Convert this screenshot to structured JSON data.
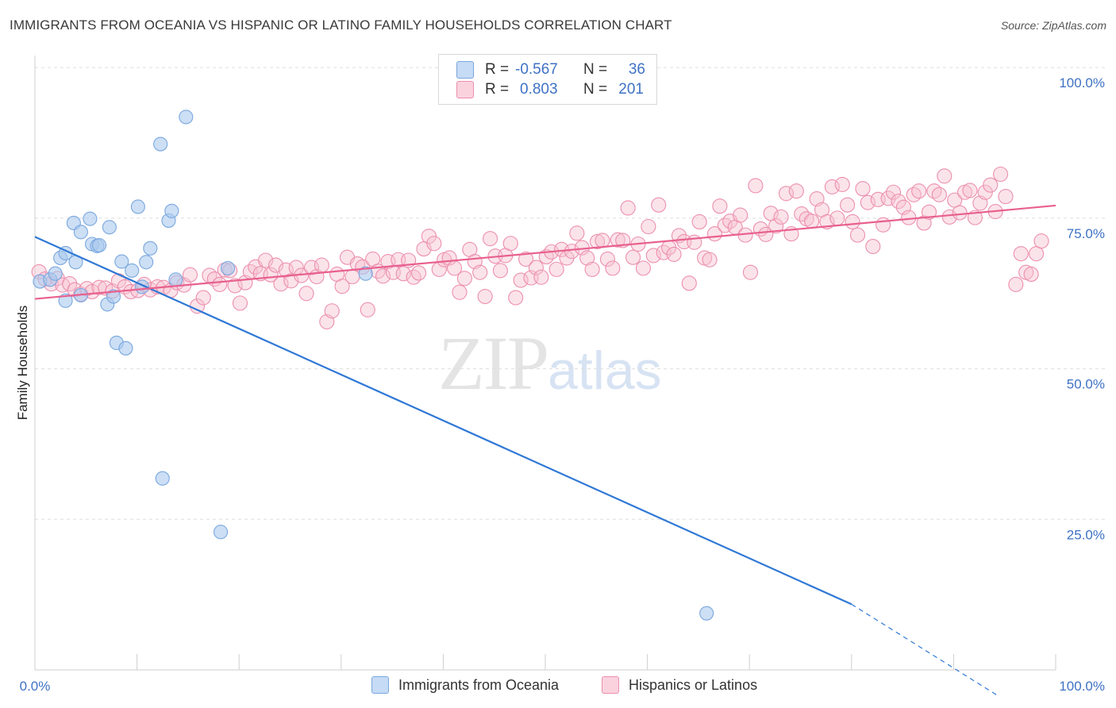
{
  "header": {
    "title": "IMMIGRANTS FROM OCEANIA VS HISPANIC OR LATINO FAMILY HOUSEHOLDS CORRELATION CHART",
    "source": "Source: ZipAtlas.com"
  },
  "watermark": {
    "zip": "ZIP",
    "atlas": "atlas"
  },
  "legend": {
    "rows": [
      {
        "r_label": "R =",
        "r_value": "-0.567",
        "n_label": "N =",
        "n_value": "36",
        "color": "#a8c8f0"
      },
      {
        "r_label": "R =",
        "r_value": "0.803",
        "n_label": "N =",
        "n_value": "201",
        "color": "#f5b8cb"
      }
    ]
  },
  "colors": {
    "blue_fill": "#aac9ef",
    "blue_stroke": "#7aa7de",
    "blue_line": "#2f78d6",
    "pink_fill": "#f7c0d1",
    "pink_stroke": "#ec8fae",
    "pink_line": "#e8608f",
    "tick_text": "#3f72c4",
    "grid": "#dddddd"
  },
  "chart_data": {
    "type": "scatter",
    "title": "IMMIGRANTS FROM OCEANIA VS HISPANIC OR LATINO FAMILY HOUSEHOLDS CORRELATION CHART",
    "xlabel": "",
    "ylabel": "Family Households",
    "xlim": [
      0,
      100
    ],
    "ylim": [
      0,
      102
    ],
    "x_tick_labels": [
      "0.0%",
      "100.0%"
    ],
    "y_tick_labels": [
      "25.0%",
      "50.0%",
      "75.0%",
      "100.0%"
    ],
    "y_ticks": [
      25,
      50,
      75,
      100
    ],
    "grid": true,
    "legend_position": "top-center",
    "series": [
      {
        "name": "Immigrants from Oceania",
        "color": "#aac9ef",
        "trend": {
          "x0": 0,
          "y0": 71.9,
          "x1": 80,
          "y1": 10.9,
          "dashed_to_x": 100
        },
        "points": [
          [
            0.5,
            64.5
          ],
          [
            1.5,
            64.8
          ],
          [
            2.0,
            65.8
          ],
          [
            2.5,
            68.4
          ],
          [
            3.0,
            69.2
          ],
          [
            3.0,
            61.3
          ],
          [
            3.8,
            74.2
          ],
          [
            4.0,
            67.7
          ],
          [
            4.5,
            62.2
          ],
          [
            4.5,
            72.7
          ],
          [
            5.4,
            74.9
          ],
          [
            5.6,
            70.7
          ],
          [
            6.1,
            70.4
          ],
          [
            6.3,
            70.5
          ],
          [
            7.1,
            60.7
          ],
          [
            7.3,
            73.5
          ],
          [
            7.7,
            62.0
          ],
          [
            8.0,
            54.3
          ],
          [
            8.5,
            67.8
          ],
          [
            8.9,
            53.4
          ],
          [
            9.5,
            66.3
          ],
          [
            10.1,
            76.9
          ],
          [
            10.5,
            63.6
          ],
          [
            10.9,
            67.7
          ],
          [
            11.3,
            70.0
          ],
          [
            12.3,
            87.3
          ],
          [
            12.5,
            31.8
          ],
          [
            13.1,
            74.6
          ],
          [
            13.4,
            76.2
          ],
          [
            13.8,
            64.8
          ],
          [
            14.8,
            91.8
          ],
          [
            18.2,
            22.9
          ],
          [
            18.9,
            66.7
          ],
          [
            32.4,
            65.8
          ],
          [
            65.8,
            9.4
          ]
        ]
      },
      {
        "name": "Hispanics or Latinos",
        "color": "#f7c0d1",
        "trend": {
          "x0": 0,
          "y0": 61.6,
          "x1": 100,
          "y1": 77.1
        },
        "points": [
          [
            0.4,
            66.1
          ],
          [
            1.0,
            64.9
          ],
          [
            1.6,
            64.1
          ],
          [
            2.2,
            65.0
          ],
          [
            2.7,
            63.9
          ],
          [
            3.4,
            64.1
          ],
          [
            3.9,
            63.1
          ],
          [
            4.5,
            62.4
          ],
          [
            5.1,
            63.3
          ],
          [
            5.6,
            62.8
          ],
          [
            6.3,
            63.5
          ],
          [
            6.9,
            63.4
          ],
          [
            7.6,
            62.9
          ],
          [
            8.2,
            64.6
          ],
          [
            8.8,
            63.6
          ],
          [
            9.4,
            62.8
          ],
          [
            10.1,
            63.0
          ],
          [
            10.7,
            64.0
          ],
          [
            11.3,
            63.1
          ],
          [
            12.0,
            63.6
          ],
          [
            12.6,
            63.5
          ],
          [
            13.3,
            63.0
          ],
          [
            13.9,
            64.3
          ],
          [
            14.6,
            63.9
          ],
          [
            15.2,
            65.6
          ],
          [
            15.9,
            60.4
          ],
          [
            16.5,
            61.8
          ],
          [
            17.1,
            65.5
          ],
          [
            17.6,
            64.9
          ],
          [
            18.1,
            64.0
          ],
          [
            18.6,
            66.4
          ],
          [
            19.1,
            66.3
          ],
          [
            19.6,
            63.8
          ],
          [
            20.1,
            60.9
          ],
          [
            20.6,
            64.3
          ],
          [
            21.1,
            66.1
          ],
          [
            21.6,
            66.9
          ],
          [
            22.1,
            65.8
          ],
          [
            22.6,
            68.0
          ],
          [
            23.1,
            65.6
          ],
          [
            23.6,
            67.2
          ],
          [
            24.1,
            64.1
          ],
          [
            24.6,
            66.4
          ],
          [
            25.1,
            64.6
          ],
          [
            25.6,
            66.8
          ],
          [
            26.1,
            65.5
          ],
          [
            26.6,
            62.5
          ],
          [
            27.1,
            66.8
          ],
          [
            27.6,
            65.3
          ],
          [
            28.1,
            67.2
          ],
          [
            28.6,
            57.8
          ],
          [
            29.1,
            59.6
          ],
          [
            29.6,
            65.7
          ],
          [
            30.1,
            63.7
          ],
          [
            30.6,
            68.5
          ],
          [
            31.1,
            65.3
          ],
          [
            31.6,
            67.4
          ],
          [
            32.1,
            66.9
          ],
          [
            32.6,
            59.8
          ],
          [
            33.1,
            68.2
          ],
          [
            33.6,
            66.2
          ],
          [
            34.1,
            65.4
          ],
          [
            34.6,
            67.8
          ],
          [
            35.1,
            66.0
          ],
          [
            35.6,
            68.1
          ],
          [
            36.1,
            65.8
          ],
          [
            36.6,
            68.0
          ],
          [
            37.1,
            65.2
          ],
          [
            37.6,
            65.9
          ],
          [
            38.1,
            69.9
          ],
          [
            38.6,
            72.0
          ],
          [
            39.1,
            70.8
          ],
          [
            39.6,
            66.5
          ],
          [
            40.1,
            68.1
          ],
          [
            40.6,
            68.4
          ],
          [
            41.1,
            66.7
          ],
          [
            41.6,
            62.7
          ],
          [
            42.1,
            65.0
          ],
          [
            42.6,
            69.8
          ],
          [
            43.1,
            67.8
          ],
          [
            43.6,
            66.0
          ],
          [
            44.1,
            62.0
          ],
          [
            44.6,
            71.6
          ],
          [
            45.1,
            68.7
          ],
          [
            45.6,
            66.3
          ],
          [
            46.1,
            68.8
          ],
          [
            46.6,
            70.8
          ],
          [
            47.1,
            61.8
          ],
          [
            47.6,
            64.7
          ],
          [
            48.1,
            68.2
          ],
          [
            48.6,
            65.1
          ],
          [
            49.1,
            66.8
          ],
          [
            49.6,
            65.2
          ],
          [
            50.1,
            68.6
          ],
          [
            50.6,
            69.4
          ],
          [
            51.1,
            66.5
          ],
          [
            51.6,
            69.8
          ],
          [
            52.1,
            68.4
          ],
          [
            52.6,
            69.5
          ],
          [
            53.1,
            72.5
          ],
          [
            53.6,
            70.1
          ],
          [
            54.1,
            68.4
          ],
          [
            54.6,
            66.5
          ],
          [
            55.1,
            71.1
          ],
          [
            55.6,
            71.3
          ],
          [
            56.1,
            68.2
          ],
          [
            56.6,
            66.7
          ],
          [
            57.1,
            71.4
          ],
          [
            57.6,
            71.3
          ],
          [
            58.1,
            76.7
          ],
          [
            58.6,
            68.5
          ],
          [
            59.1,
            70.7
          ],
          [
            59.6,
            66.7
          ],
          [
            60.1,
            73.6
          ],
          [
            60.6,
            68.8
          ],
          [
            61.1,
            77.2
          ],
          [
            61.6,
            69.3
          ],
          [
            62.1,
            70.1
          ],
          [
            62.6,
            69.0
          ],
          [
            63.1,
            72.1
          ],
          [
            63.6,
            71.1
          ],
          [
            64.1,
            64.2
          ],
          [
            64.6,
            71.0
          ],
          [
            65.1,
            74.4
          ],
          [
            65.6,
            68.4
          ],
          [
            66.1,
            68.1
          ],
          [
            66.6,
            72.4
          ],
          [
            67.1,
            77.0
          ],
          [
            67.6,
            73.8
          ],
          [
            68.1,
            74.5
          ],
          [
            68.6,
            73.5
          ],
          [
            69.1,
            75.5
          ],
          [
            69.6,
            72.2
          ],
          [
            70.1,
            66.0
          ],
          [
            70.6,
            80.4
          ],
          [
            71.1,
            73.2
          ],
          [
            71.6,
            72.3
          ],
          [
            72.1,
            75.8
          ],
          [
            72.6,
            73.7
          ],
          [
            73.1,
            75.2
          ],
          [
            73.6,
            79.1
          ],
          [
            74.1,
            72.4
          ],
          [
            74.6,
            79.5
          ],
          [
            75.1,
            75.7
          ],
          [
            75.6,
            74.9
          ],
          [
            76.1,
            74.5
          ],
          [
            76.6,
            78.2
          ],
          [
            77.1,
            76.4
          ],
          [
            77.6,
            74.4
          ],
          [
            78.1,
            80.2
          ],
          [
            78.6,
            75.0
          ],
          [
            79.1,
            80.6
          ],
          [
            79.6,
            77.2
          ],
          [
            80.1,
            74.4
          ],
          [
            80.6,
            72.2
          ],
          [
            81.1,
            79.9
          ],
          [
            81.6,
            77.6
          ],
          [
            82.1,
            70.3
          ],
          [
            82.6,
            78.1
          ],
          [
            83.1,
            73.9
          ],
          [
            83.6,
            78.3
          ],
          [
            84.1,
            79.3
          ],
          [
            84.6,
            77.8
          ],
          [
            85.1,
            76.8
          ],
          [
            85.6,
            75.1
          ],
          [
            86.1,
            78.9
          ],
          [
            86.6,
            79.5
          ],
          [
            87.1,
            74.2
          ],
          [
            87.6,
            76.0
          ],
          [
            88.1,
            79.5
          ],
          [
            88.6,
            78.9
          ],
          [
            89.1,
            82.0
          ],
          [
            89.6,
            75.2
          ],
          [
            90.1,
            78.0
          ],
          [
            90.6,
            75.9
          ],
          [
            91.1,
            79.3
          ],
          [
            91.6,
            79.6
          ],
          [
            92.1,
            75.1
          ],
          [
            92.6,
            77.5
          ],
          [
            93.1,
            79.3
          ],
          [
            93.6,
            80.5
          ],
          [
            94.1,
            76.1
          ],
          [
            94.6,
            82.3
          ],
          [
            95.1,
            78.6
          ],
          [
            96.1,
            64.0
          ],
          [
            96.6,
            69.1
          ],
          [
            97.1,
            66.0
          ],
          [
            97.6,
            65.7
          ],
          [
            98.1,
            69.1
          ],
          [
            98.6,
            71.2
          ]
        ]
      }
    ]
  },
  "bottom_legend": {
    "items": [
      {
        "label": "Immigrants from Oceania",
        "color": "#aac9ef"
      },
      {
        "label": "Hispanics or Latinos",
        "color": "#f7c0d1"
      }
    ]
  }
}
